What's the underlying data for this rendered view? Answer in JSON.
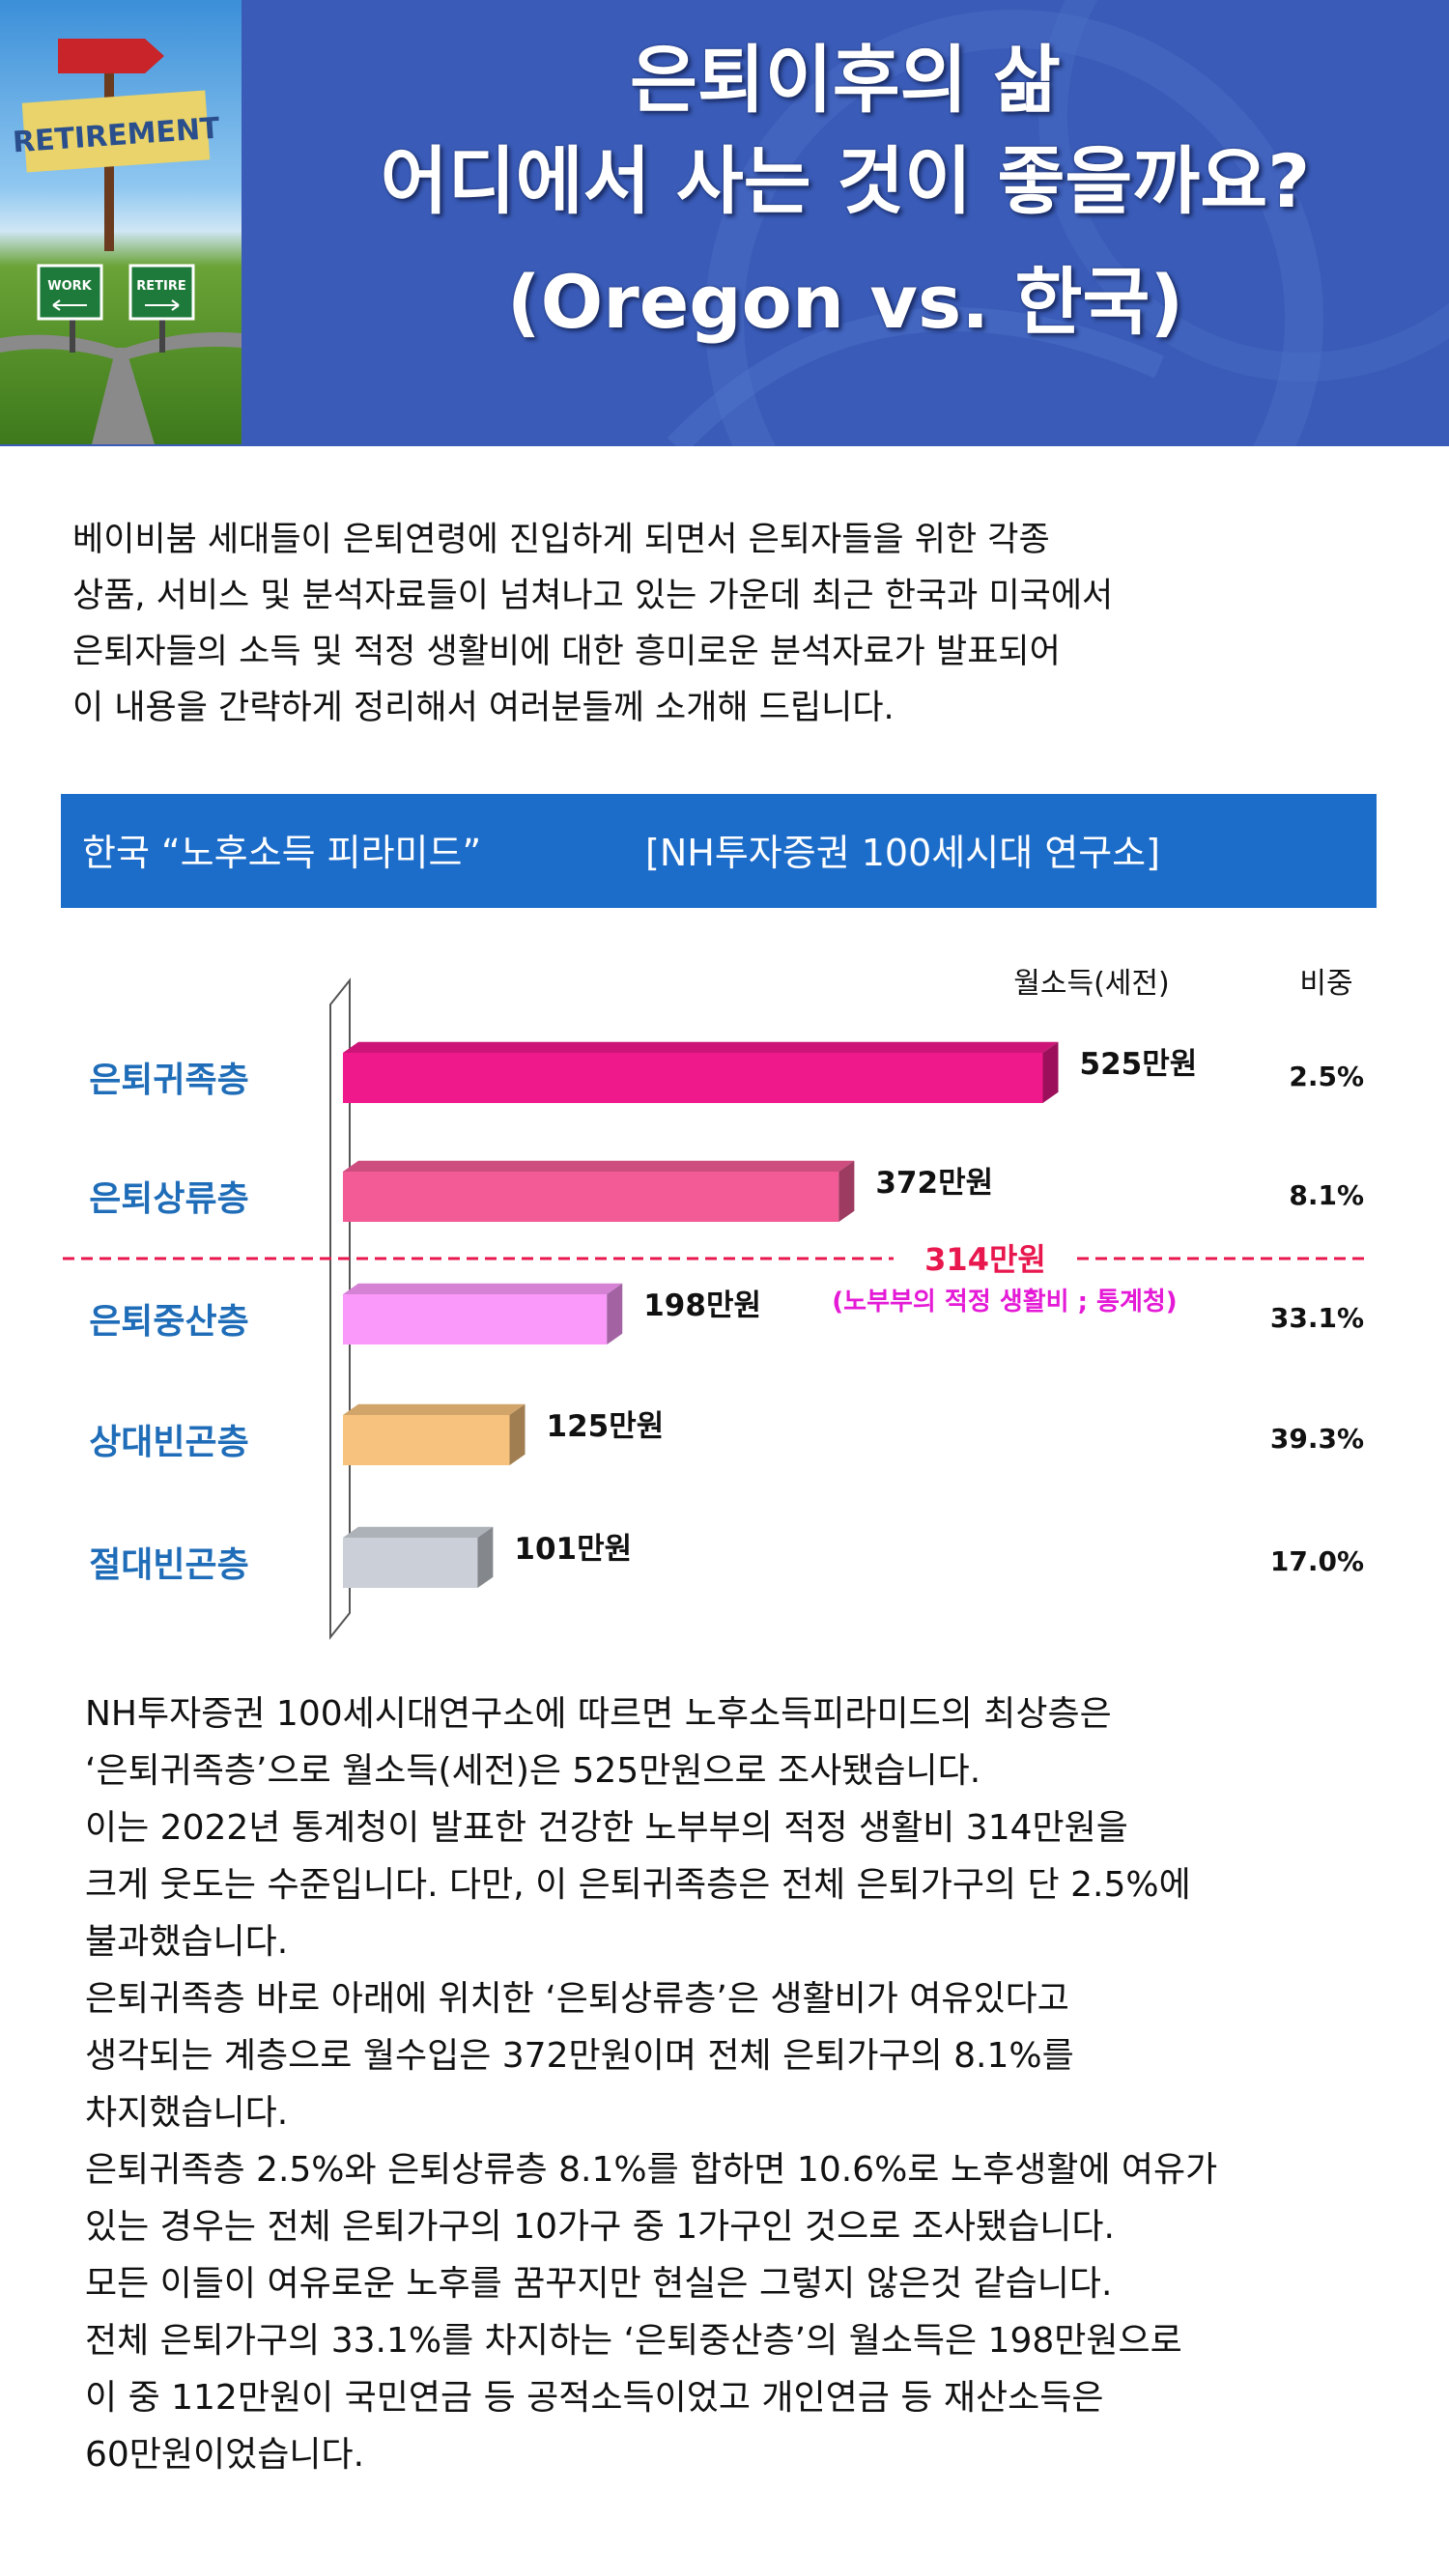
{
  "header": {
    "title_line1": "은퇴이후의 삶",
    "title_line2": "어디에서 사는 것이 좋을까요?",
    "title_line3": "(Oregon vs. 한국)",
    "photo_signs": {
      "main": "RETIREMENT",
      "left": "WORK",
      "right": "RETIRE"
    }
  },
  "intro": {
    "lines": [
      "베이비붐 세대들이 은퇴연령에 진입하게 되면서 은퇴자들을 위한 각종",
      "상품, 서비스 및 분석자료들이 넘쳐나고 있는 가운데 최근 한국과 미국에서",
      "은퇴자들의 소득 및 적정 생활비에 대한 흥미로운 분석자료가 발표되어",
      "이 내용을 간략하게 정리해서 여러분들께 소개해 드립니다."
    ]
  },
  "section": {
    "title": "한국 “노후소득 피라미드”",
    "source": "[NH투자증권 100세시대 연구소]"
  },
  "chart_data": {
    "type": "bar",
    "orientation": "horizontal",
    "header_income": "월소득(세전)",
    "header_share": "비중",
    "categories": [
      "은퇴귀족층",
      "은퇴상류층",
      "은퇴중산층",
      "상대빈곤층",
      "절대빈곤층"
    ],
    "values": [
      525,
      372,
      198,
      125,
      101
    ],
    "value_labels": [
      "525만원",
      "372만원",
      "198만원",
      "125만원",
      "101만원"
    ],
    "shares": [
      "2.5%",
      "8.1%",
      "33.1%",
      "39.3%",
      "17.0%"
    ],
    "colors": [
      "#f0198c",
      "#f25b95",
      "#fb99fb",
      "#f6c27d",
      "#cbd0d8"
    ],
    "reference_line": {
      "value": 314,
      "label": "314만원",
      "note": "(노부부의 적정 생활비 ; 통계청)"
    },
    "line_color": "#e8174e",
    "note_color": "#e41ad6",
    "category_color": "#1f6db8"
  },
  "body": {
    "lines": [
      "NH투자증권 100세시대연구소에 따르면 노후소득피라미드의 최상층은",
      "‘은퇴귀족층’으로 월소득(세전)은 525만원으로 조사됐습니다.",
      "이는 2022년 통계청이 발표한 건강한 노부부의 적정 생활비 314만원을",
      "크게 웃도는 수준입니다. 다만, 이 은퇴귀족층은 전체 은퇴가구의 단 2.5%에",
      "불과했습니다.",
      "은퇴귀족층 바로 아래에 위치한 ‘은퇴상류층’은 생활비가 여유있다고",
      "생각되는 계층으로 월수입은 372만원이며 전체 은퇴가구의 8.1%를",
      "차지했습니다.",
      "은퇴귀족층 2.5%와 은퇴상류층 8.1%를 합하면 10.6%로 노후생활에 여유가",
      "있는 경우는 전체 은퇴가구의 10가구 중 1가구인 것으로 조사됐습니다.",
      "모든 이들이 여유로운 노후를 꿈꾸지만 현실은 그렇지 않은것 같습니다.",
      "전체 은퇴가구의 33.1%를 차지하는 ‘은퇴중산층’의 월소득은 198만원으로",
      "이 중 112만원이 국민연금 등 공적소득이었고 개인연금 등 재산소득은",
      "60만원이었습니다."
    ]
  }
}
